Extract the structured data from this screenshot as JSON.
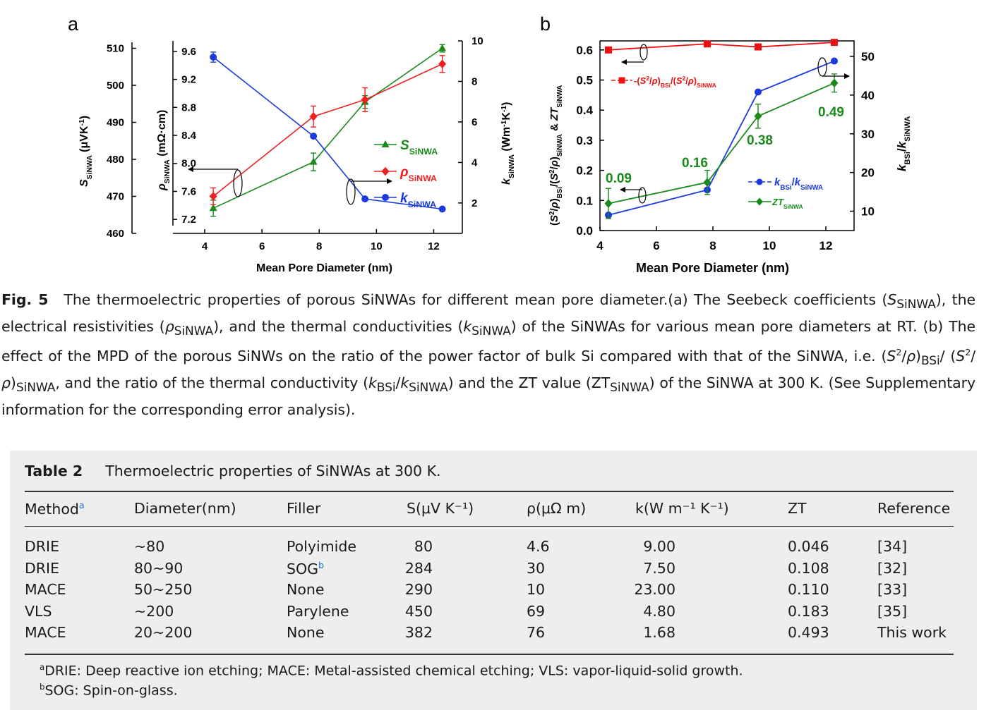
{
  "figure": {
    "panel_a": {
      "letter": "a"
    },
    "panel_b": {
      "letter": "b"
    }
  },
  "chart_data": [
    {
      "type": "line",
      "panel": "a",
      "xlabel": "Mean Pore Diameter (nm)",
      "xlim": [
        4,
        13
      ],
      "xticks": [
        4,
        6,
        8,
        10,
        12
      ],
      "axes": {
        "S": {
          "label": "S_SiNWA (μVK⁻¹)",
          "ylim": [
            460,
            512
          ],
          "ticks": [
            460,
            470,
            480,
            490,
            500,
            510
          ]
        },
        "rho": {
          "label": "ρ_SiNWA (mΩ·cm)",
          "ylim": [
            7.0,
            9.75
          ],
          "ticks": [
            7.2,
            7.6,
            8.0,
            8.4,
            8.8,
            9.2,
            9.6
          ]
        },
        "k": {
          "label": "k_SiNWA (Wm⁻¹K⁻¹)",
          "ylim": [
            0.5,
            10
          ],
          "ticks": [
            2,
            4,
            6,
            8,
            10
          ]
        }
      },
      "series": [
        {
          "name": "S_SiNWA",
          "axis": "S",
          "color": "#1a8a1a",
          "marker": "triangle",
          "x": [
            4.3,
            7.8,
            9.6,
            12.3
          ],
          "y": [
            466.8,
            479.3,
            495.5,
            510.0
          ],
          "err": [
            2.2,
            2.4,
            1.7,
            1.0
          ]
        },
        {
          "name": "ρ_SiNWA",
          "axis": "rho",
          "color": "#ee2020",
          "marker": "diamond",
          "x": [
            4.3,
            7.8,
            9.6,
            12.3
          ],
          "y": [
            7.53,
            8.67,
            8.91,
            9.42
          ],
          "err": [
            0.12,
            0.15,
            0.17,
            0.12
          ]
        },
        {
          "name": "k_SiNWA",
          "axis": "k",
          "color": "#1a3ae0",
          "marker": "circle",
          "x": [
            4.3,
            7.8,
            9.6,
            12.3
          ],
          "y": [
            9.2,
            5.3,
            2.2,
            1.7
          ],
          "err": [
            0.25,
            0,
            0,
            0
          ]
        }
      ]
    },
    {
      "type": "line",
      "panel": "b",
      "xlabel": "Mean Pore Diameter (nm)",
      "xlim": [
        4,
        13
      ],
      "xticks": [
        4,
        6,
        8,
        10,
        12
      ],
      "axes": {
        "left": {
          "label": "(S²/ρ)_BSi/(S²/ρ)_SiNWA & ZT_SiNWA",
          "ylim": [
            0,
            0.63
          ],
          "ticks": [
            0.0,
            0.1,
            0.2,
            0.3,
            0.4,
            0.5,
            0.6
          ]
        },
        "right": {
          "label": "k_BSi/k_SiNWA",
          "ylim": [
            5,
            54
          ],
          "ticks": [
            10,
            20,
            30,
            40,
            50
          ]
        }
      },
      "series": [
        {
          "name": "(S²/ρ)_BSi/(S²/ρ)_SiNWA",
          "axis": "left",
          "color": "#ee1010",
          "marker": "square",
          "x": [
            4.3,
            7.8,
            9.6,
            12.3
          ],
          "y": [
            0.6,
            0.62,
            0.61,
            0.625
          ],
          "err": [
            0,
            0,
            0,
            0
          ]
        },
        {
          "name": "k_BSi/k_SiNWA",
          "axis": "right",
          "color": "#1a3ae0",
          "marker": "circle",
          "x": [
            4.3,
            7.8,
            9.6,
            12.3
          ],
          "y": [
            9.0,
            15.5,
            40.8,
            48.8
          ],
          "err": [
            0,
            0,
            0,
            0
          ]
        },
        {
          "name": "ZT_SiNWA",
          "axis": "left",
          "color": "#1a8a1a",
          "marker": "diamond",
          "x": [
            4.3,
            7.8,
            9.6,
            12.3
          ],
          "y": [
            0.09,
            0.16,
            0.38,
            0.49
          ],
          "err": [
            0.05,
            0.04,
            0.04,
            0.03
          ]
        }
      ],
      "annotations": [
        "0.09",
        "0.16",
        "0.38",
        "0.49"
      ]
    }
  ],
  "caption": {
    "label": "Fig. 5",
    "p1": "The thermoelectric properties of porous SiNWAs for different mean pore diameter.(a) The Seebeck coefficients (",
    "p2": "), the electrical resistivities (",
    "p3": "), and the thermal conductivities (",
    "p4": ") of the SiNWAs for various mean pore diameters at RT. (b) The effect of the MPD of the porous SiNWs on the ratio of the power factor of bulk Si compared with that of the SiNWA, i.e. (",
    "p5": ", and the ratio of the thermal conductivity (",
    "p6": ") and the ZT value (",
    "p7": ") of the SiNWA at 300 K. (See Supplementary information for the corresponding error analysis)."
  },
  "table": {
    "label": "Table 2",
    "title": "Thermoelectric properties of SiNWAs at 300 K.",
    "headers": {
      "method": "Method",
      "method_sup": "a",
      "diameter": "Diameter(nm)",
      "filler": "Filler",
      "s": "S(μV K⁻¹)",
      "rho": "ρ(μΩ m)",
      "k": "k(W m⁻¹ K⁻¹)",
      "zt": "ZT",
      "reference": "Reference"
    },
    "rows": [
      {
        "method": "DRIE",
        "diameter": "~80",
        "filler": "Polyimide",
        "filler_sup": "",
        "s": "80",
        "rho": "4.6",
        "k": "9.00",
        "zt": "0.046",
        "reference": "[34]"
      },
      {
        "method": "DRIE",
        "diameter": "80~90",
        "filler": "SOG",
        "filler_sup": "b",
        "s": "284",
        "rho": "30",
        "k": "7.50",
        "zt": "0.108",
        "reference": "[32]"
      },
      {
        "method": "MACE",
        "diameter": "50~250",
        "filler": "None",
        "filler_sup": "",
        "s": "290",
        "rho": "10",
        "k": "23.00",
        "zt": "0.110",
        "reference": "[33]"
      },
      {
        "method": "VLS",
        "diameter": "~200",
        "filler": "Parylene",
        "filler_sup": "",
        "s": "450",
        "rho": "69",
        "k": "4.80",
        "zt": "0.183",
        "reference": "[35]"
      },
      {
        "method": "MACE",
        "diameter": "20~200",
        "filler": "None",
        "filler_sup": "",
        "s": "382",
        "rho": "76",
        "k": "1.68",
        "zt": "0.493",
        "reference": "This work"
      }
    ],
    "footnotes": {
      "a_mark": "a",
      "a": "DRIE: Deep reactive ion etching; MACE: Metal-assisted chemical etching; VLS: vapor-liquid-solid growth.",
      "b_mark": "b",
      "b": "SOG: Spin-on-glass."
    }
  }
}
